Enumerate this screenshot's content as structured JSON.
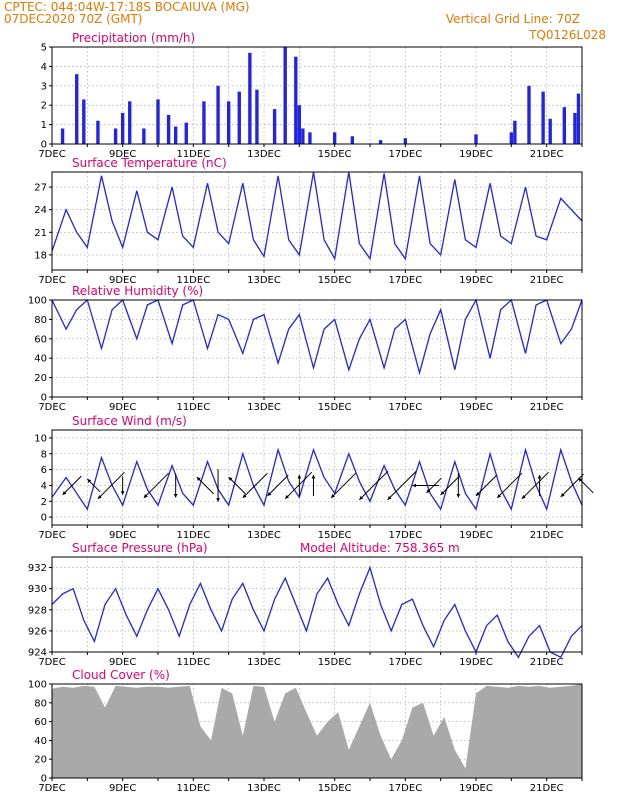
{
  "header": {
    "line1": "CPTEC:   044:04W-17:18S   BOCAIUVA (MG)",
    "line2": "07DEC2020 70Z (GMT)",
    "vertical_grid": "Vertical Grid Line: 70Z",
    "code": "TQ0126L028"
  },
  "colors": {
    "header": "#e87800",
    "title": "#e0006a",
    "series": "#2323e6",
    "cloud": "#a9a9a9"
  },
  "x_axis": {
    "labels": [
      "7DEC",
      "9DEC",
      "11DEC",
      "13DEC",
      "15DEC",
      "17DEC",
      "19DEC",
      "21DEC"
    ],
    "days_shown": 15
  },
  "panels": [
    {
      "id": "precip",
      "title": "Precipitation (mm/h)",
      "extra": ""
    },
    {
      "id": "temp",
      "title": "Surface Temperature (nC)",
      "extra": ""
    },
    {
      "id": "rh",
      "title": "Relative Humidity (%)",
      "extra": ""
    },
    {
      "id": "wind",
      "title": "Surface Wind (m/s)",
      "extra": ""
    },
    {
      "id": "press",
      "title": "Surface Pressure (hPa)",
      "extra": "Model Altitude: 758.365 m"
    },
    {
      "id": "cloud",
      "title": "Cloud Cover (%)",
      "extra": ""
    }
  ],
  "chart_data": [
    {
      "type": "bar",
      "title": "Precipitation (mm/h)",
      "ylabel": "mm/h",
      "ylim": [
        0,
        5
      ],
      "yticks": [
        "0",
        "1",
        "2",
        "3",
        "4",
        "5"
      ],
      "grid": true,
      "x": [
        0.3,
        0.7,
        0.9,
        1.3,
        1.8,
        2.0,
        2.2,
        2.6,
        3.0,
        3.3,
        3.5,
        3.8,
        4.3,
        4.7,
        5.0,
        5.3,
        5.6,
        5.8,
        6.3,
        6.6,
        6.9,
        7.0,
        7.1,
        7.3,
        8.0,
        8.5,
        9.3,
        10.0,
        12.0,
        13.0,
        13.1,
        13.5,
        13.9,
        14.1,
        14.5,
        14.8,
        14.9
      ],
      "values": [
        0.8,
        3.6,
        2.3,
        1.2,
        0.8,
        1.6,
        2.2,
        0.8,
        2.3,
        1.5,
        0.9,
        1.1,
        2.2,
        3.0,
        2.2,
        2.7,
        4.7,
        2.8,
        1.8,
        5.0,
        4.5,
        2.0,
        0.8,
        0.6,
        0.6,
        0.4,
        0.2,
        0.3,
        0.5,
        0.6,
        1.2,
        3.0,
        2.7,
        1.3,
        1.9,
        1.6,
        2.6
      ]
    },
    {
      "type": "line",
      "title": "Surface Temperature (nC)",
      "ylim": [
        16,
        29
      ],
      "yticks": [
        "18",
        "21",
        "24",
        "27"
      ],
      "grid": true,
      "series": [
        {
          "x": [
            0.0,
            0.4,
            0.7,
            1.0,
            1.4,
            1.7,
            2.0,
            2.4,
            2.7,
            3.0,
            3.4,
            3.7,
            4.0,
            4.4,
            4.7,
            5.0,
            5.4,
            5.7,
            6.0,
            6.4,
            6.7,
            7.0,
            7.4,
            7.7,
            8.0,
            8.4,
            8.7,
            9.0,
            9.4,
            9.7,
            10.0,
            10.4,
            10.7,
            11.0,
            11.4,
            11.7,
            12.0,
            12.4,
            12.7,
            13.0,
            13.4,
            13.7,
            14.0,
            14.4,
            14.7,
            15.0
          ],
          "values": [
            18.5,
            24.0,
            21.0,
            19.0,
            28.5,
            22.5,
            19.0,
            26.5,
            21.0,
            20.0,
            27.0,
            20.5,
            19.0,
            27.5,
            21.0,
            19.5,
            27.5,
            20.0,
            17.8,
            28.5,
            20.0,
            18.0,
            29.0,
            20.0,
            17.5,
            29.0,
            19.5,
            17.5,
            28.8,
            19.5,
            17.5,
            28.5,
            19.5,
            18.0,
            28.0,
            20.0,
            19.0,
            27.5,
            20.5,
            19.5,
            27.0,
            20.5,
            20.0,
            25.5,
            24.0,
            22.5
          ]
        }
      ]
    },
    {
      "type": "line",
      "title": "Relative Humidity (%)",
      "ylim": [
        0,
        100
      ],
      "yticks": [
        "0",
        "20",
        "40",
        "60",
        "80",
        "100"
      ],
      "grid": true,
      "series": [
        {
          "x": [
            0.0,
            0.4,
            0.7,
            1.0,
            1.4,
            1.7,
            2.0,
            2.4,
            2.7,
            3.0,
            3.4,
            3.7,
            4.0,
            4.4,
            4.7,
            5.0,
            5.4,
            5.7,
            6.0,
            6.4,
            6.7,
            7.0,
            7.4,
            7.7,
            8.0,
            8.4,
            8.7,
            9.0,
            9.4,
            9.7,
            10.0,
            10.4,
            10.7,
            11.0,
            11.4,
            11.7,
            12.0,
            12.4,
            12.7,
            13.0,
            13.4,
            13.7,
            14.0,
            14.4,
            14.7,
            15.0
          ],
          "values": [
            100,
            70,
            90,
            100,
            50,
            90,
            100,
            60,
            95,
            100,
            55,
            95,
            100,
            50,
            85,
            80,
            45,
            80,
            85,
            35,
            70,
            85,
            30,
            70,
            80,
            28,
            60,
            80,
            30,
            70,
            80,
            25,
            65,
            90,
            28,
            80,
            100,
            40,
            90,
            100,
            45,
            95,
            100,
            55,
            70,
            100
          ]
        }
      ]
    },
    {
      "type": "line",
      "title": "Surface Wind (m/s)",
      "ylim": [
        -1,
        11
      ],
      "yticks": [
        "0",
        "2",
        "4",
        "6",
        "8",
        "10"
      ],
      "grid": true,
      "series": [
        {
          "x": [
            0.0,
            0.4,
            0.7,
            1.0,
            1.4,
            1.7,
            2.0,
            2.4,
            2.7,
            3.0,
            3.4,
            3.7,
            4.0,
            4.4,
            4.7,
            5.0,
            5.4,
            5.7,
            6.0,
            6.4,
            6.7,
            7.0,
            7.4,
            7.7,
            8.0,
            8.4,
            8.7,
            9.0,
            9.4,
            9.7,
            10.0,
            10.4,
            10.7,
            11.0,
            11.4,
            11.7,
            12.0,
            12.4,
            12.7,
            13.0,
            13.4,
            13.7,
            14.0,
            14.4,
            14.7,
            15.0
          ],
          "values": [
            2.5,
            5.0,
            3.0,
            1.0,
            7.5,
            4.0,
            1.5,
            7.0,
            3.5,
            1.5,
            6.5,
            3.0,
            1.5,
            7.0,
            3.5,
            1.5,
            8.0,
            4.0,
            1.5,
            8.5,
            4.5,
            2.5,
            8.5,
            5.0,
            3.0,
            8.0,
            4.5,
            2.0,
            6.5,
            3.5,
            1.5,
            7.0,
            3.0,
            1.0,
            7.0,
            3.0,
            1.0,
            8.0,
            3.5,
            1.0,
            8.5,
            4.0,
            1.0,
            8.5,
            4.5,
            1.5
          ]
        }
      ],
      "wind_arrows": [
        {
          "x": 0.3,
          "dir": "sw",
          "len": 0.6
        },
        {
          "x": 1.0,
          "dir": "nw",
          "len": 0.3
        },
        {
          "x": 1.3,
          "dir": "sw",
          "len": 1.0
        },
        {
          "x": 2.0,
          "dir": "s",
          "len": 0.3
        },
        {
          "x": 2.6,
          "dir": "sw",
          "len": 0.9
        },
        {
          "x": 3.5,
          "dir": "s",
          "len": 0.5
        },
        {
          "x": 4.1,
          "dir": "nw",
          "len": 0.5
        },
        {
          "x": 4.7,
          "dir": "s",
          "len": 0.8
        },
        {
          "x": 5.0,
          "dir": "nw",
          "len": 0.5
        },
        {
          "x": 5.4,
          "dir": "sw",
          "len": 0.9
        },
        {
          "x": 6.1,
          "dir": "sw",
          "len": 0.7
        },
        {
          "x": 6.6,
          "dir": "sw",
          "len": 1.0
        },
        {
          "x": 7.0,
          "dir": "n",
          "len": 0.4
        },
        {
          "x": 7.4,
          "dir": "n",
          "len": 0.4
        },
        {
          "x": 7.9,
          "dir": "sw",
          "len": 0.9
        },
        {
          "x": 8.7,
          "dir": "sw",
          "len": 1.1
        },
        {
          "x": 9.5,
          "dir": "sw",
          "len": 1.1
        },
        {
          "x": 10.2,
          "dir": "w",
          "len": 0.6
        },
        {
          "x": 10.6,
          "dir": "sw",
          "len": 0.4
        },
        {
          "x": 11.0,
          "dir": "sw",
          "len": 0.6
        },
        {
          "x": 11.5,
          "dir": "s",
          "len": 0.5
        },
        {
          "x": 12.0,
          "dir": "sw",
          "len": 0.7
        },
        {
          "x": 12.6,
          "dir": "sw",
          "len": 0.9
        },
        {
          "x": 13.3,
          "dir": "sw",
          "len": 1.0
        },
        {
          "x": 13.8,
          "dir": "n",
          "len": 0.4
        },
        {
          "x": 14.4,
          "dir": "sw",
          "len": 0.8
        },
        {
          "x": 14.9,
          "dir": "nw",
          "len": 0.4
        }
      ]
    },
    {
      "type": "line",
      "title": "Surface Pressure (hPa)",
      "ylim": [
        924,
        933
      ],
      "yticks": [
        "924",
        "926",
        "928",
        "930",
        "932"
      ],
      "grid": true,
      "series": [
        {
          "x": [
            0.0,
            0.3,
            0.6,
            0.9,
            1.2,
            1.5,
            1.8,
            2.1,
            2.4,
            2.7,
            3.0,
            3.3,
            3.6,
            3.9,
            4.2,
            4.5,
            4.8,
            5.1,
            5.4,
            5.7,
            6.0,
            6.3,
            6.6,
            6.9,
            7.2,
            7.5,
            7.8,
            8.1,
            8.4,
            8.7,
            9.0,
            9.3,
            9.6,
            9.9,
            10.2,
            10.5,
            10.8,
            11.1,
            11.4,
            11.7,
            12.0,
            12.3,
            12.6,
            12.9,
            13.2,
            13.5,
            13.8,
            14.1,
            14.4,
            14.7,
            15.0
          ],
          "values": [
            928.5,
            929.5,
            930.0,
            927.0,
            925.0,
            928.5,
            930.0,
            927.5,
            925.5,
            928.0,
            930.0,
            928.0,
            925.5,
            928.5,
            930.5,
            928.0,
            926.0,
            929.0,
            930.5,
            928.0,
            926.0,
            929.0,
            931.0,
            928.5,
            926.0,
            929.5,
            931.0,
            928.5,
            926.5,
            929.5,
            932.0,
            928.5,
            926.0,
            928.5,
            929.0,
            926.5,
            924.5,
            927.0,
            928.5,
            926.0,
            924.0,
            926.5,
            927.5,
            925.0,
            923.5,
            925.5,
            926.5,
            924.0,
            923.5,
            925.5,
            926.5
          ]
        }
      ]
    },
    {
      "type": "area",
      "title": "Cloud Cover (%)",
      "ylim": [
        0,
        100
      ],
      "yticks": [
        "0",
        "20",
        "40",
        "60",
        "80",
        "100"
      ],
      "grid": true,
      "series": [
        {
          "x": [
            0.0,
            0.3,
            0.6,
            0.9,
            1.2,
            1.5,
            1.8,
            2.1,
            2.4,
            2.7,
            3.0,
            3.3,
            3.6,
            3.9,
            4.2,
            4.5,
            4.8,
            5.1,
            5.4,
            5.7,
            6.0,
            6.3,
            6.6,
            6.9,
            7.2,
            7.5,
            7.8,
            8.1,
            8.4,
            8.7,
            9.0,
            9.3,
            9.6,
            9.9,
            10.2,
            10.5,
            10.8,
            11.1,
            11.4,
            11.7,
            12.0,
            12.3,
            12.6,
            12.9,
            13.2,
            13.5,
            13.8,
            14.1,
            14.4,
            14.7,
            15.0
          ],
          "values": [
            95,
            97,
            96,
            98,
            97,
            75,
            98,
            97,
            96,
            97,
            97,
            96,
            97,
            98,
            55,
            40,
            96,
            90,
            45,
            98,
            97,
            60,
            90,
            96,
            70,
            45,
            60,
            70,
            30,
            55,
            80,
            45,
            20,
            40,
            75,
            80,
            45,
            65,
            30,
            10,
            90,
            98,
            97,
            96,
            98,
            97,
            98,
            96,
            97,
            98,
            100
          ]
        }
      ]
    }
  ]
}
